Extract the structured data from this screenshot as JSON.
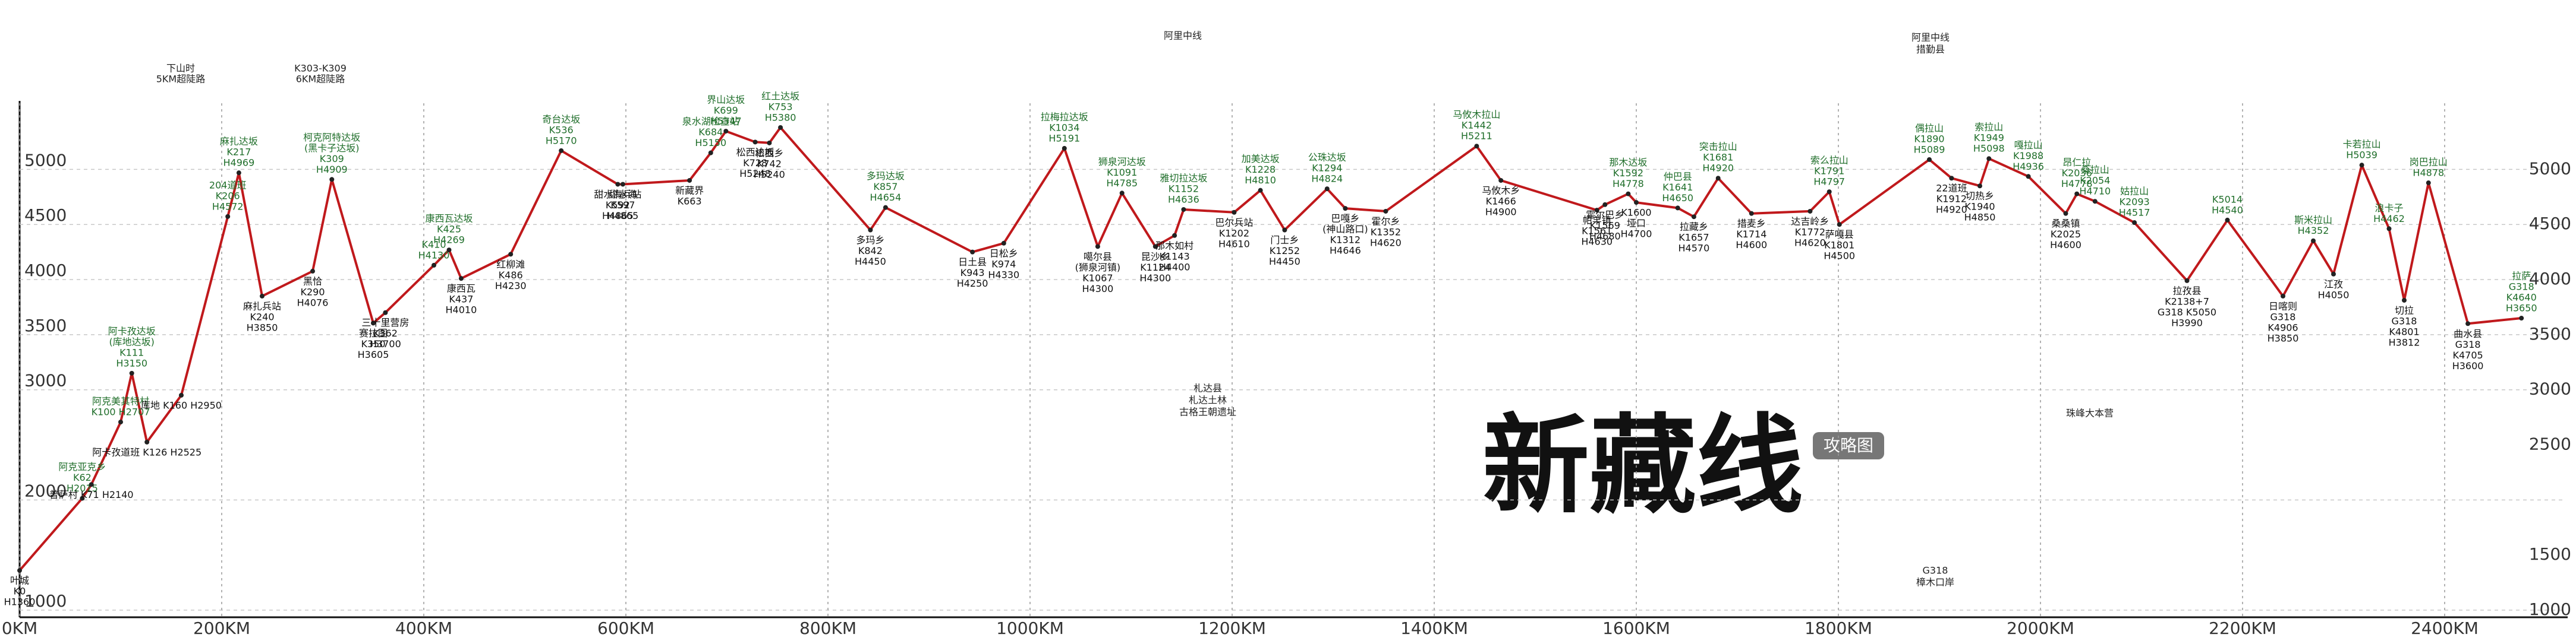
{
  "chart_data": {
    "type": "line",
    "title": "新藏线",
    "subtitle": "攻略图",
    "color": "#c0191c",
    "grid": true,
    "xlim": [
      0,
      2520
    ],
    "xticks": [
      {
        "value": 0,
        "label": "0KM"
      },
      {
        "value": 200,
        "label": "200KM"
      },
      {
        "value": 400,
        "label": "400KM"
      },
      {
        "value": 600,
        "label": "600KM"
      },
      {
        "value": 800,
        "label": "800KM"
      },
      {
        "value": 1000,
        "label": "1000KM"
      },
      {
        "value": 1200,
        "label": "1200KM"
      },
      {
        "value": 1400,
        "label": "1400KM"
      },
      {
        "value": 1600,
        "label": "1600KM"
      },
      {
        "value": 1800,
        "label": "1800KM"
      },
      {
        "value": 2000,
        "label": "2000KM"
      },
      {
        "value": 2200,
        "label": "2200KM"
      },
      {
        "value": 2400,
        "label": "2400KM"
      }
    ],
    "ylim": [
      1000,
      5600
    ],
    "yticks": [
      1000,
      2000,
      3000,
      3500,
      4000,
      4500,
      5000
    ],
    "y2lim": [
      1000,
      5600
    ],
    "y2ticks": [
      1000,
      1500,
      2500,
      3000,
      3500,
      4000,
      4500,
      5000
    ],
    "x": [
      0,
      62,
      71,
      100,
      111,
      126,
      160,
      206,
      217,
      240,
      290,
      309,
      350,
      362,
      410,
      425,
      437,
      486,
      536,
      592,
      597,
      663,
      684,
      699,
      728,
      742,
      753,
      842,
      857,
      943,
      974,
      1034,
      1067,
      1091,
      1124,
      1143,
      1152,
      1202,
      1228,
      1252,
      1294,
      1312,
      1352,
      1442,
      1466,
      1561,
      1569,
      1592,
      1600,
      1641,
      1657,
      1681,
      1714,
      1772,
      1791,
      1801,
      1890,
      1912,
      1940,
      1949,
      1988,
      2025,
      2036,
      2054,
      2093,
      2145,
      2185,
      2240,
      2270,
      2290,
      2318,
      2345,
      2360,
      2384,
      2423,
      2476
    ],
    "values": [
      1360,
      2015,
      2140,
      2707,
      3150,
      2525,
      2950,
      4572,
      4969,
      3850,
      4076,
      4909,
      3605,
      3700,
      4130,
      4269,
      4010,
      4230,
      5170,
      4865,
      4865,
      4900,
      5150,
      5347,
      5248,
      5240,
      5380,
      4450,
      4654,
      4250,
      4330,
      5191,
      4300,
      4785,
      4300,
      4400,
      4636,
      4610,
      4810,
      4450,
      4824,
      4646,
      4620,
      5211,
      4900,
      4630,
      4680,
      4778,
      4700,
      4650,
      4570,
      4920,
      4600,
      4620,
      4797,
      4500,
      5089,
      4920,
      4850,
      5098,
      4936,
      4600,
      4778,
      4710,
      4517,
      3990,
      4540,
      3850,
      4352,
      4050,
      5039,
      4462,
      3812,
      4878,
      3600,
      3650
    ],
    "point_labels": [
      [
        "叶城",
        "K0",
        "H1360"
      ],
      [
        "阿克亚克乡",
        "K62",
        "H2015"
      ],
      [
        "普萨村 K71 H2140"
      ],
      [
        "阿克美其特村",
        "K100 H2707"
      ],
      [
        "阿卡孜达坂",
        "(库地达坂)",
        "K111",
        "H3150"
      ],
      [
        "阿卡孜道班 K126 H2525"
      ],
      [
        "库地 K160 H2950"
      ],
      [
        "204道班",
        "K206",
        "H4572"
      ],
      [
        "麻扎达坂",
        "K217",
        "H4969"
      ],
      [
        "麻扎兵站",
        "K240",
        "H3850"
      ],
      [
        "黑恰",
        "K290",
        "H4076"
      ],
      [
        "柯克阿特达坂",
        "(黑卡子达坂)",
        "K309",
        "H4909"
      ],
      [
        "赛拉图",
        "K350",
        "H3605"
      ],
      [
        "三十里营房",
        "K362",
        "H3700"
      ],
      [
        "K410",
        "H4130"
      ],
      [
        "康西瓦达坂",
        "K425",
        "H4269"
      ],
      [
        "康西瓦",
        "K437",
        "H4010"
      ],
      [
        "红柳滩",
        "K486",
        "H4230"
      ],
      [
        "奇台达坂",
        "K536",
        "H5170"
      ],
      [
        "甜水海兵站",
        "K592",
        "H4865"
      ],
      [
        "甜水海",
        "K597",
        "H4865"
      ],
      [
        "新藏界",
        "K663"
      ],
      [
        "泉水湖检查站",
        "K684",
        "H5150"
      ],
      [
        "界山达坂",
        "K699",
        "H5347"
      ],
      [
        "松西达坂",
        "K728",
        "H5248"
      ],
      [
        "松西乡",
        "K742",
        "H5240"
      ],
      [
        "红土达坂",
        "K753",
        "H5380"
      ],
      [
        "多玛乡",
        "K842",
        "H4450"
      ],
      [
        "多玛达坂",
        "K857",
        "H4654"
      ],
      [
        "日土县",
        "K943",
        "H4250"
      ],
      [
        "日松乡",
        "K974",
        "H4330"
      ],
      [
        "拉梅拉达坂",
        "K1034",
        "H5191"
      ],
      [
        "噶尔县",
        "(狮泉河镇)",
        "K1067",
        "H4300"
      ],
      [
        "狮泉河达坂",
        "K1091",
        "H4785"
      ],
      [
        "昆沙乡",
        "K1124",
        "H4300"
      ],
      [
        "那木如村",
        "K1143",
        "H4400"
      ],
      [
        "雅切拉达坂",
        "K1152",
        "H4636"
      ],
      [
        "巴尔兵站",
        "K1202",
        "H4610"
      ],
      [
        "加美达坂",
        "K1228",
        "H4810"
      ],
      [
        "门士乡",
        "K1252",
        "H4450"
      ],
      [
        "公珠达坂",
        "K1294",
        "H4824"
      ],
      [
        "巴嘎乡",
        "(神山路口)",
        "K1312",
        "H4646"
      ],
      [
        "霍尔乡",
        "K1352",
        "H4620"
      ],
      [
        "马攸木拉山",
        "K1442",
        "H5211"
      ],
      [
        "马攸木乡",
        "K1466",
        "H4900"
      ],
      [
        "帕羊镇",
        "K1561",
        "H4630"
      ],
      [
        "霍尔巴乡",
        "K1569",
        "H4680"
      ],
      [
        "那木达坂",
        "K1592",
        "H4778"
      ],
      [
        "K1600",
        "垭口",
        "H4700"
      ],
      [
        "仲巴县",
        "K1641",
        "H4650"
      ],
      [
        "拉藏乡",
        "K1657",
        "H4570"
      ],
      [
        "突击拉山",
        "K1681",
        "H4920"
      ],
      [
        "措麦乡",
        "K1714",
        "H4600"
      ],
      [
        "达吉岭乡",
        "K1772",
        "H4620"
      ],
      [
        "索么拉山",
        "K1791",
        "H4797"
      ],
      [
        "萨嘎县",
        "K1801",
        "H4500"
      ],
      [
        "偶拉山",
        "K1890",
        "H5089"
      ],
      [
        "22道班",
        "K1912",
        "H4920"
      ],
      [
        "切热乡",
        "K1940",
        "H4850"
      ],
      [
        "索拉山",
        "K1949",
        "H5098"
      ],
      [
        "嘎拉山",
        "K1988",
        "H4936"
      ],
      [
        "桑桑镇",
        "K2025",
        "H4600"
      ],
      [
        "昂仁拉",
        "K2036",
        "H4778"
      ],
      [
        "桑拉山",
        "K2054",
        "H4710"
      ],
      [
        "姑拉山",
        "K2093",
        "H4517"
      ],
      [
        "拉孜县",
        "K2138+7",
        "G318 K5050",
        "H3990"
      ],
      [
        "K5014",
        "H4540"
      ],
      [
        "日喀则",
        "G318",
        "K4906",
        "H3850"
      ],
      [
        "斯米拉山",
        "H4352"
      ],
      [
        "江孜",
        "H4050"
      ],
      [
        "卡若拉山",
        "H5039"
      ],
      [
        "浪卡子",
        "H4462"
      ],
      [
        "切拉",
        "G318",
        "K4801",
        "H3812"
      ],
      [
        "岗巴拉山",
        "H4878"
      ],
      [
        "曲水县",
        "G318",
        "K4705",
        "H3600"
      ],
      [
        "拉萨",
        "G318",
        "K4640",
        "H3650"
      ]
    ],
    "notes": [
      "下山时",
      "5KM超陡路",
      "K303-K309",
      "6KM超陡路",
      "阿里中线",
      "札达县",
      "札达土林",
      "古格王朝遗址",
      "G318",
      "樟木口岸",
      "珠峰大本营",
      "阿里中线",
      "措勤县"
    ]
  }
}
